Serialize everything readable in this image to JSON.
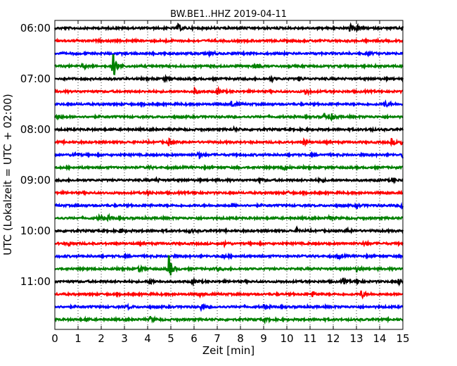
{
  "chart_data": {
    "type": "line",
    "title": "BW.BE1..HHZ 2019-04-11",
    "xlabel": "Zeit  [min]",
    "ylabel": "UTC (Lokalzeit = UTC + 02:00)",
    "xlim": [
      0,
      15
    ],
    "x_ticks": [
      "0",
      "1",
      "2",
      "3",
      "4",
      "5",
      "6",
      "7",
      "8",
      "9",
      "10",
      "11",
      "12",
      "13",
      "14",
      "15"
    ],
    "y_tick_labels": [
      "06:00",
      "07:00",
      "08:00",
      "09:00",
      "10:00",
      "11:00"
    ],
    "traces_per_hour": 4,
    "trace_minutes": 15,
    "series_colors": [
      "#000000",
      "#ff0000",
      "#0000ff",
      "#008000"
    ],
    "grid": "vertical-dotted",
    "traces": [
      {
        "start": "06:00",
        "events": [
          [
            5.3,
            0.5
          ],
          [
            12.7,
            0.5
          ],
          [
            13.0,
            0.4
          ],
          [
            15.0,
            0.5
          ]
        ]
      },
      {
        "start": "06:15",
        "events": [
          [
            4.7,
            0.2
          ]
        ]
      },
      {
        "start": "06:30",
        "events": [
          [
            6.7,
            0.3
          ],
          [
            13.5,
            0.2
          ]
        ]
      },
      {
        "start": "06:45",
        "events": [
          [
            2.5,
            2.0
          ],
          [
            8.6,
            0.6
          ],
          [
            1.2,
            0.3
          ]
        ]
      },
      {
        "start": "07:00",
        "events": [
          [
            4.7,
            0.3
          ],
          [
            9.3,
            0.3
          ],
          [
            10.5,
            0.3
          ]
        ]
      },
      {
        "start": "07:15",
        "events": [
          [
            6.0,
            0.4
          ],
          [
            7.0,
            0.4
          ],
          [
            10.8,
            0.4
          ]
        ]
      },
      {
        "start": "07:30",
        "events": [
          [
            7.6,
            0.4
          ],
          [
            14.2,
            0.5
          ]
        ]
      },
      {
        "start": "07:45",
        "events": [
          [
            0.1,
            0.4
          ],
          [
            11.6,
            0.5
          ],
          [
            11.9,
            0.4
          ]
        ]
      },
      {
        "start": "08:00",
        "events": [
          [
            7.7,
            0.2
          ],
          [
            13.5,
            0.2
          ]
        ]
      },
      {
        "start": "08:15",
        "events": [
          [
            4.9,
            0.5
          ],
          [
            10.7,
            0.5
          ],
          [
            14.5,
            0.5
          ],
          [
            14.9,
            0.5
          ]
        ]
      },
      {
        "start": "08:30",
        "events": [
          [
            0.8,
            0.5
          ],
          [
            6.2,
            0.5
          ],
          [
            15.0,
            0.4
          ]
        ]
      },
      {
        "start": "08:45",
        "events": [
          [
            9.8,
            0.6
          ],
          [
            4.0,
            0.2
          ]
        ]
      },
      {
        "start": "09:00",
        "events": [
          [
            4.3,
            0.3
          ],
          [
            8.8,
            0.3
          ],
          [
            11.4,
            0.3
          ],
          [
            14.5,
            0.3
          ]
        ]
      },
      {
        "start": "09:15",
        "events": [
          [
            4.0,
            0.3
          ],
          [
            6.0,
            0.3
          ],
          [
            10.0,
            0.2
          ]
        ]
      },
      {
        "start": "09:30",
        "events": [
          [
            14.9,
            0.5
          ],
          [
            13.0,
            0.3
          ],
          [
            7.6,
            0.3
          ]
        ]
      },
      {
        "start": "09:45",
        "events": [
          [
            1.9,
            0.5
          ],
          [
            2.3,
            0.3
          ],
          [
            11.8,
            0.3
          ]
        ]
      },
      {
        "start": "10:00",
        "events": [
          [
            2.8,
            0.3
          ],
          [
            5.8,
            0.3
          ],
          [
            10.4,
            0.3
          ],
          [
            12.6,
            0.3
          ]
        ]
      },
      {
        "start": "10:15",
        "events": [
          [
            0.6,
            0.3
          ],
          [
            7.3,
            0.3
          ],
          [
            13.3,
            0.3
          ]
        ]
      },
      {
        "start": "10:30",
        "events": [
          [
            7.2,
            0.3
          ],
          [
            12.2,
            0.3
          ]
        ]
      },
      {
        "start": "10:45",
        "events": [
          [
            4.9,
            2.0
          ],
          [
            3.6,
            0.4
          ],
          [
            7.0,
            0.3
          ],
          [
            13.0,
            0.4
          ]
        ]
      },
      {
        "start": "11:00",
        "events": [
          [
            4.1,
            0.4
          ],
          [
            5.9,
            0.4
          ],
          [
            12.4,
            0.5
          ],
          [
            13.0,
            0.5
          ],
          [
            14.8,
            0.5
          ]
        ]
      },
      {
        "start": "11:15",
        "events": [
          [
            11.1,
            0.4
          ],
          [
            13.2,
            0.6
          ],
          [
            6.2,
            0.3
          ]
        ]
      },
      {
        "start": "11:30",
        "events": [
          [
            3.1,
            0.3
          ],
          [
            6.3,
            0.4
          ],
          [
            9.0,
            0.3
          ]
        ]
      },
      {
        "start": "11:45",
        "events": [
          [
            4.1,
            0.4
          ],
          [
            9.0,
            0.3
          ],
          [
            1.3,
            0.2
          ]
        ]
      }
    ]
  }
}
